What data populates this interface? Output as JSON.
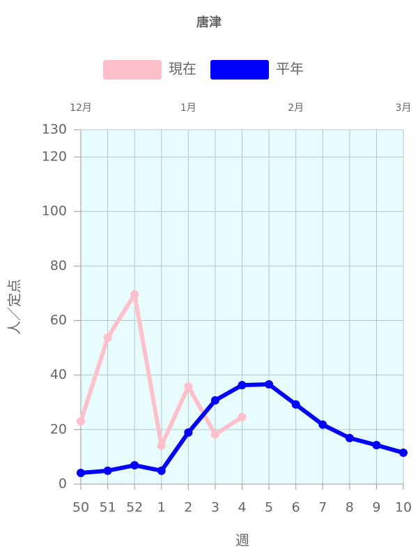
{
  "chart_data": {
    "type": "line",
    "title": "唐津",
    "categories": [
      "50",
      "51",
      "52",
      "1",
      "2",
      "3",
      "4",
      "5",
      "6",
      "7",
      "8",
      "9",
      "10"
    ],
    "x2_categories": [
      "12月",
      null,
      null,
      null,
      "1月",
      null,
      null,
      null,
      "2月",
      null,
      null,
      null,
      "3月"
    ],
    "series": [
      {
        "name": "現在",
        "color": "#ffc0cb",
        "values": [
          23.0,
          53.7,
          69.6,
          14.1,
          35.8,
          18.2,
          24.6,
          null,
          null,
          null,
          null,
          null,
          null
        ]
      },
      {
        "name": "平年",
        "color": "#0000ff",
        "values": [
          4.1,
          4.9,
          6.9,
          4.9,
          18.9,
          30.7,
          36.3,
          36.6,
          29.2,
          21.8,
          16.9,
          14.3,
          11.5
        ]
      }
    ],
    "ylim": [
      0,
      130
    ],
    "yticks": [
      0,
      20,
      40,
      60,
      80,
      100,
      120,
      130
    ],
    "ylabel": "人／定点",
    "xlabel": "週",
    "grid": true,
    "background": "#e6fcfd",
    "legend": "top"
  }
}
